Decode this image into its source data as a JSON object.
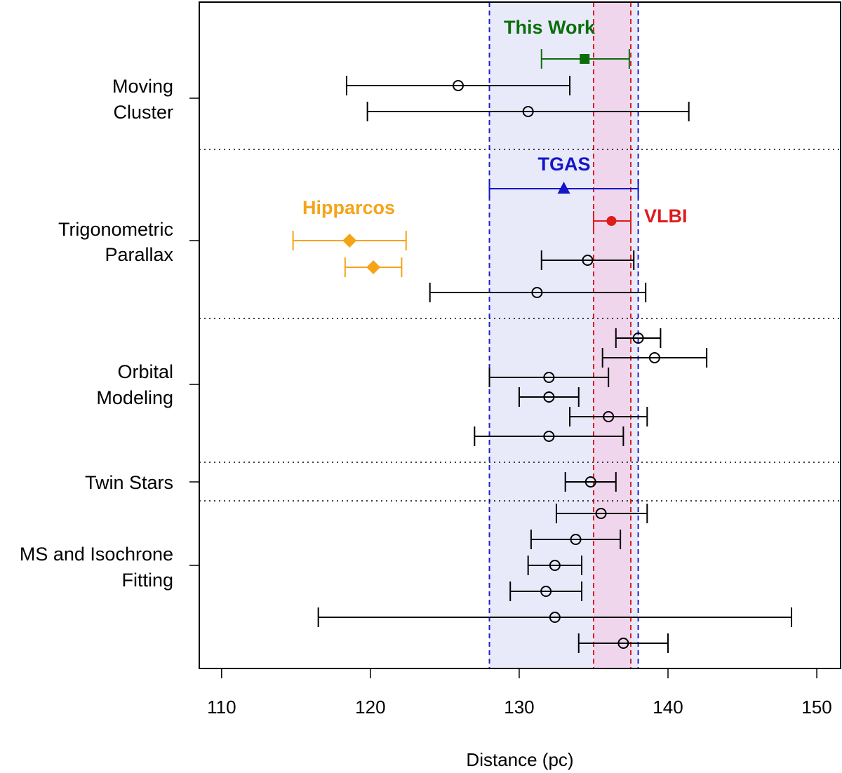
{
  "chart_data": {
    "type": "scatter",
    "xlabel": "Distance (pc)",
    "xlim": [
      108.5,
      151.6
    ],
    "x_ticks": [
      "110",
      "120",
      "130",
      "140",
      "150"
    ],
    "grid": false,
    "groups": [
      {
        "label": [
          "Moving",
          "Cluster"
        ]
      },
      {
        "label": [
          "Trigonometric",
          "Parallax"
        ]
      },
      {
        "label": [
          "Orbital",
          "Modeling"
        ]
      },
      {
        "label": [
          "Twin Stars"
        ]
      },
      {
        "label": [
          "MS and Isochrone",
          "Fitting"
        ]
      }
    ],
    "bands": [
      {
        "name": "TGAS",
        "range": [
          128.0,
          138.0
        ],
        "color": "#e8eafa",
        "line_color": "#2020c8"
      },
      {
        "name": "VLBI",
        "range": [
          135.0,
          137.5
        ],
        "color": "#f0d6ec",
        "line_color": "#d81e1e"
      }
    ],
    "series": [
      {
        "name": "This Work",
        "label_text": "This Work",
        "color": "#0b6e0b",
        "marker": "filled-square",
        "group": 0,
        "points": [
          {
            "x": 134.4,
            "lo": 131.5,
            "hi": 137.4
          }
        ]
      },
      {
        "name": "",
        "color": "#000000",
        "marker": "open-circle",
        "group": 0,
        "points": [
          {
            "x": 125.9,
            "lo": 118.4,
            "hi": 133.4
          },
          {
            "x": 130.6,
            "lo": 119.8,
            "hi": 141.4
          }
        ]
      },
      {
        "name": "TGAS",
        "label_text": "TGAS",
        "color": "#1515c8",
        "marker": "filled-triangle",
        "group": 1,
        "points": [
          {
            "x": 133.0,
            "lo": 128.0,
            "hi": 138.0
          }
        ]
      },
      {
        "name": "VLBI",
        "label_text": "VLBI",
        "color": "#dd1c1c",
        "marker": "filled-circle",
        "group": 1,
        "points": [
          {
            "x": 136.2,
            "lo": 135.0,
            "hi": 137.5
          }
        ]
      },
      {
        "name": "Hipparcos",
        "label_text": "Hipparcos",
        "color": "#f5a418",
        "marker": "filled-diamond",
        "group": 1,
        "points": [
          {
            "x": 118.6,
            "lo": 114.8,
            "hi": 122.4
          },
          {
            "x": 120.2,
            "lo": 118.3,
            "hi": 122.1
          }
        ]
      },
      {
        "name": "",
        "color": "#000000",
        "marker": "open-circle",
        "group": 1,
        "points": [
          {
            "x": 134.6,
            "lo": 131.5,
            "hi": 137.7
          },
          {
            "x": 131.2,
            "lo": 124.0,
            "hi": 138.5
          }
        ]
      },
      {
        "name": "",
        "color": "#000000",
        "marker": "open-circle",
        "group": 2,
        "points": [
          {
            "x": 138.0,
            "lo": 136.5,
            "hi": 139.5
          },
          {
            "x": 139.1,
            "lo": 135.6,
            "hi": 142.6
          },
          {
            "x": 132.0,
            "lo": 128.0,
            "hi": 136.0
          },
          {
            "x": 132.0,
            "lo": 130.0,
            "hi": 134.0
          },
          {
            "x": 136.0,
            "lo": 133.4,
            "hi": 138.6
          },
          {
            "x": 132.0,
            "lo": 127.0,
            "hi": 137.0
          }
        ]
      },
      {
        "name": "",
        "color": "#000000",
        "marker": "open-circle",
        "group": 3,
        "points": [
          {
            "x": 134.8,
            "lo": 133.1,
            "hi": 136.5
          }
        ]
      },
      {
        "name": "",
        "color": "#000000",
        "marker": "open-circle",
        "group": 4,
        "points": [
          {
            "x": 135.5,
            "lo": 132.5,
            "hi": 138.6
          },
          {
            "x": 133.8,
            "lo": 130.8,
            "hi": 136.8
          },
          {
            "x": 132.4,
            "lo": 130.6,
            "hi": 134.2
          },
          {
            "x": 131.8,
            "lo": 129.4,
            "hi": 134.2
          },
          {
            "x": 132.4,
            "lo": 116.5,
            "hi": 148.3
          },
          {
            "x": 137.0,
            "lo": 134.0,
            "hi": 140.0
          }
        ]
      }
    ]
  }
}
